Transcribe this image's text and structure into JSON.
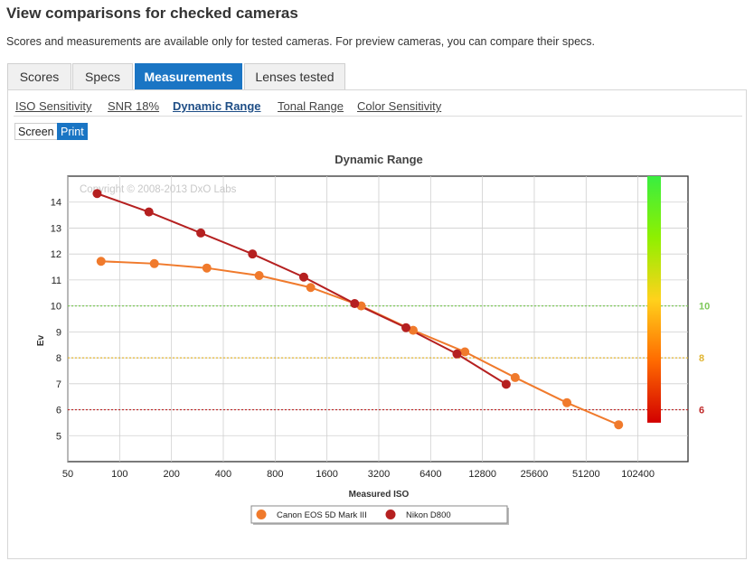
{
  "page": {
    "title": "View comparisons for checked cameras",
    "intro": "Scores and measurements are available only for tested cameras. For preview cameras, you can compare their specs."
  },
  "tabs": [
    {
      "label": "Scores",
      "active": false
    },
    {
      "label": "Specs",
      "active": false
    },
    {
      "label": "Measurements",
      "active": true
    },
    {
      "label": "Lenses tested",
      "active": false
    }
  ],
  "subtabs": [
    {
      "label": "ISO Sensitivity",
      "active": false
    },
    {
      "label": "SNR 18%",
      "active": false
    },
    {
      "label": "Dynamic Range",
      "active": true
    },
    {
      "label": "Tonal Range",
      "active": false
    },
    {
      "label": "Color Sensitivity",
      "active": false
    }
  ],
  "view_toggle": [
    {
      "label": "Screen",
      "active": false
    },
    {
      "label": "Print",
      "active": true
    }
  ],
  "chart_data": {
    "type": "line",
    "title": "Dynamic Range",
    "xlabel": "Measured ISO",
    "ylabel": "Ev",
    "x_scale": "log2",
    "xlim": [
      50,
      200000
    ],
    "ylim": [
      4,
      15
    ],
    "x_ticks": [
      50,
      100,
      200,
      400,
      800,
      1600,
      3200,
      6400,
      12800,
      25600,
      51200,
      102400
    ],
    "y_ticks": [
      5,
      6,
      7,
      8,
      9,
      10,
      11,
      12,
      13,
      14
    ],
    "grid": true,
    "watermark": "Copyright © 2008-2013 DxO Labs",
    "legend_position": "bottom",
    "reference_lines": [
      {
        "value": 10,
        "label": "10",
        "color": "#7ec85a"
      },
      {
        "value": 8,
        "label": "8",
        "color": "#e0b430"
      },
      {
        "value": 6,
        "label": "6",
        "color": "#c02828"
      }
    ],
    "color_scale": {
      "min": 5.5,
      "max": 15,
      "colors": [
        "#d20000",
        "#ff6a00",
        "#ffd21c",
        "#8ff000",
        "#39ee40"
      ]
    },
    "series": [
      {
        "name": "Canon EOS 5D Mark III",
        "color": "#f07a2c",
        "x": [
          78,
          159,
          321,
          646,
          1287,
          2530,
          5067,
          10120,
          19830,
          39590,
          79070
        ],
        "y": [
          11.72,
          11.63,
          11.46,
          11.17,
          10.71,
          10.0,
          9.06,
          8.23,
          7.24,
          6.27,
          5.42
        ]
      },
      {
        "name": "Nikon D800",
        "color": "#b52020",
        "x": [
          74,
          148,
          296,
          591,
          1173,
          2318,
          4603,
          9103,
          17580
        ],
        "y": [
          14.33,
          13.62,
          12.81,
          12.0,
          11.11,
          10.09,
          9.16,
          8.15,
          6.98
        ]
      }
    ]
  }
}
